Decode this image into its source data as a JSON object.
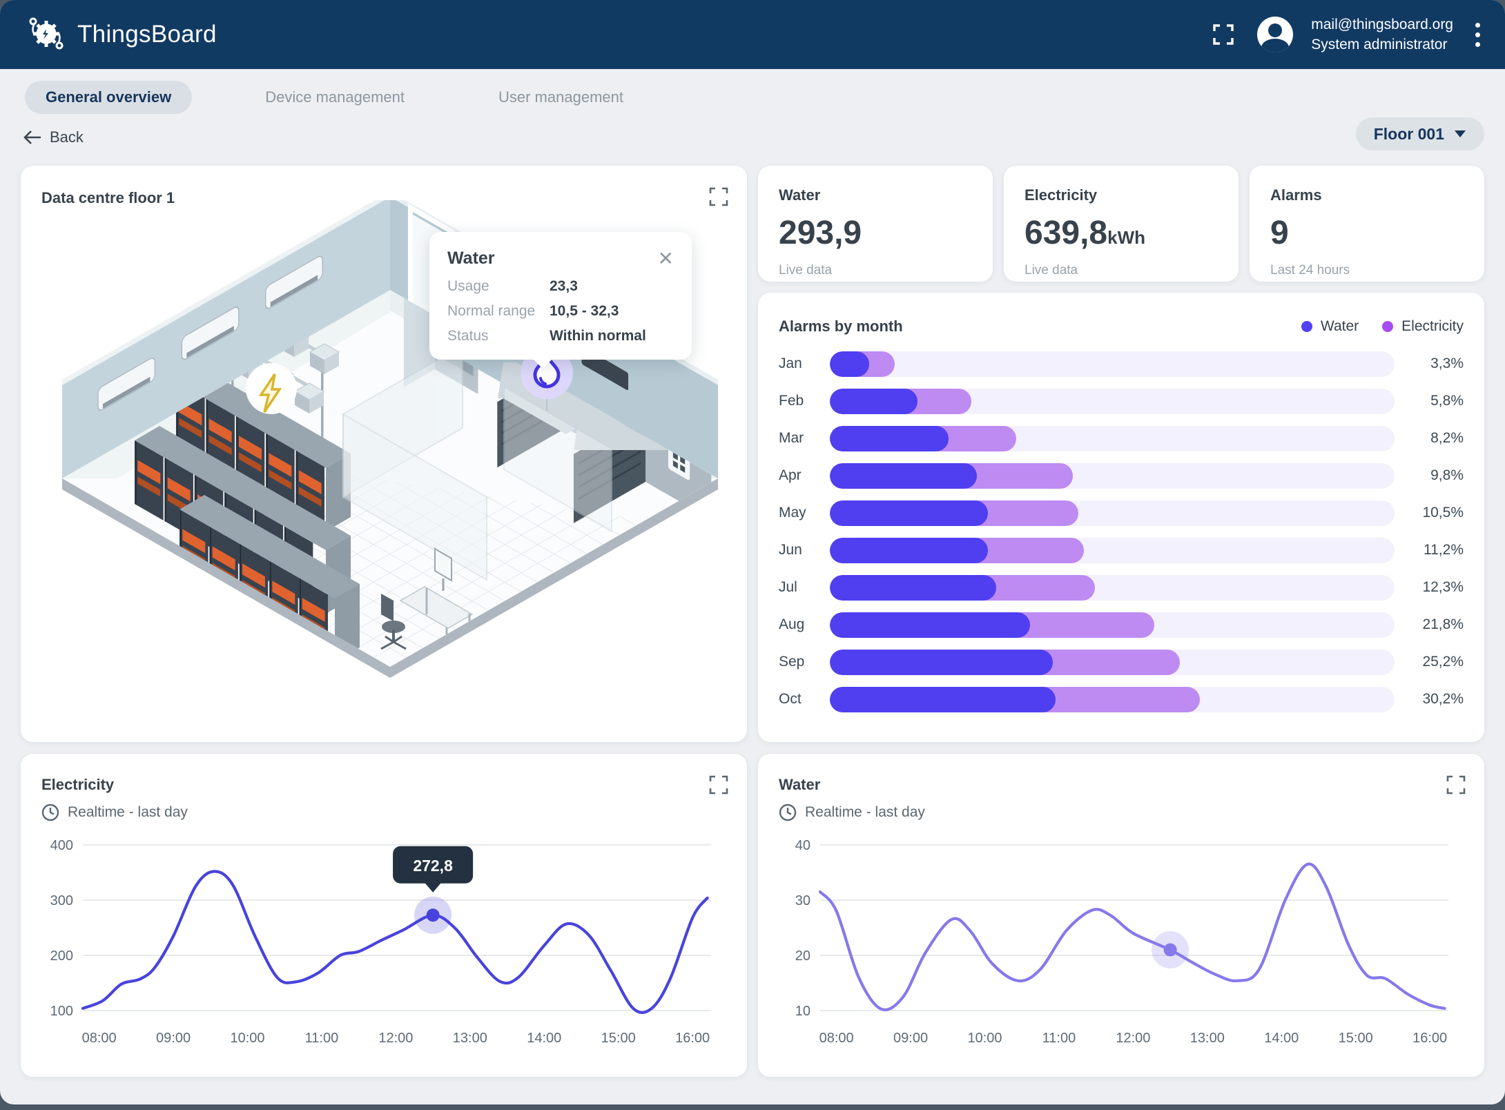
{
  "app": {
    "brand": "ThingsBoard",
    "user": {
      "email": "mail@thingsboard.org",
      "role": "System administrator"
    }
  },
  "tabs": [
    {
      "label": "General overview",
      "active": true
    },
    {
      "label": "Device management",
      "active": false
    },
    {
      "label": "User management",
      "active": false
    }
  ],
  "toolbar": {
    "back_label": "Back",
    "floor_selector_label": "Floor 001"
  },
  "floor_card": {
    "title": "Data centre floor 1",
    "marker_tooltip": {
      "title": "Water",
      "rows": [
        {
          "label": "Usage",
          "value": "23,3"
        },
        {
          "label": "Normal range",
          "value": "10,5 - 32,3"
        },
        {
          "label": "Status",
          "value": "Within normal"
        }
      ]
    },
    "badges": [
      {
        "name": "electricity"
      },
      {
        "name": "water"
      }
    ]
  },
  "stat_cards": [
    {
      "title": "Water",
      "value": "293,9",
      "unit": "",
      "caption": "Live data"
    },
    {
      "title": "Electricity",
      "value": "639,8",
      "unit": "kWh",
      "caption": "Live data"
    },
    {
      "title": "Alarms",
      "value": "9",
      "unit": "",
      "caption": "Last 24 hours"
    }
  ],
  "colors": {
    "navbar": "#113a63",
    "water_accent": "#4f3ff0",
    "electricity_accent": "#bd8bf2",
    "legend_water_dot": "#5241f2",
    "legend_electricity_dot": "#a64cf5",
    "bar_track": "#f3f1fd",
    "electricity_line": "#4843dc",
    "water_line": "#8679ea",
    "tooltip_dark": "#233140"
  },
  "chart_data": [
    {
      "id": "alarms-by-month",
      "type": "bar",
      "orientation": "horizontal",
      "title": "Alarms by month",
      "legend": [
        {
          "name": "Water",
          "color": "#5241f2"
        },
        {
          "name": "Electricity",
          "color": "#a64cf5"
        }
      ],
      "legend_position": "top-right",
      "categories": [
        "Jan",
        "Feb",
        "Mar",
        "Apr",
        "May",
        "Jun",
        "Jul",
        "Aug",
        "Sep",
        "Oct"
      ],
      "series": [
        {
          "name": "Water",
          "color": "#4f3ff0",
          "track_width_pct": [
            7,
            15.5,
            21,
            26,
            28,
            28,
            29.5,
            35.5,
            39.5,
            40
          ]
        },
        {
          "name": "Electricity",
          "color": "#bd8bf2",
          "track_width_pct": [
            4.5,
            9.5,
            12,
            17,
            16,
            17,
            17.5,
            22,
            22.5,
            25.5
          ]
        }
      ],
      "value_labels": [
        "3,3%",
        "5,8%",
        "8,2%",
        "9,8%",
        "10,5%",
        "11,2%",
        "12,3%",
        "21,8%",
        "25,2%",
        "30,2%"
      ],
      "track_color": "#f3f1fd"
    },
    {
      "id": "electricity-realtime",
      "type": "line",
      "title": "Electricity",
      "subtitle": "Realtime - last day",
      "color": "#4843dc",
      "ylim": [
        100,
        400
      ],
      "yticks": [
        100,
        200,
        300,
        400
      ],
      "xlim": [
        7.78,
        16.25
      ],
      "xticks": [
        {
          "h": 8,
          "label": "08:00"
        },
        {
          "h": 9,
          "label": "09:00"
        },
        {
          "h": 10,
          "label": "10:00"
        },
        {
          "h": 11,
          "label": "11:00"
        },
        {
          "h": 12,
          "label": "12:00"
        },
        {
          "h": 13,
          "label": "13:00"
        },
        {
          "h": 14,
          "label": "14:00"
        },
        {
          "h": 15,
          "label": "15:00"
        },
        {
          "h": 16,
          "label": "16:00"
        }
      ],
      "points": [
        [
          7.78,
          104
        ],
        [
          8.05,
          118
        ],
        [
          8.3,
          148
        ],
        [
          8.55,
          157
        ],
        [
          8.75,
          178
        ],
        [
          9.0,
          235
        ],
        [
          9.3,
          325
        ],
        [
          9.55,
          352
        ],
        [
          9.8,
          328
        ],
        [
          10.1,
          235
        ],
        [
          10.4,
          160
        ],
        [
          10.65,
          152
        ],
        [
          10.95,
          168
        ],
        [
          11.25,
          200
        ],
        [
          11.5,
          207
        ],
        [
          11.8,
          227
        ],
        [
          12.1,
          246
        ],
        [
          12.5,
          272.8
        ],
        [
          12.8,
          249
        ],
        [
          13.1,
          196
        ],
        [
          13.4,
          153
        ],
        [
          13.65,
          160
        ],
        [
          14.0,
          218
        ],
        [
          14.3,
          257
        ],
        [
          14.6,
          237
        ],
        [
          14.9,
          172
        ],
        [
          15.2,
          104
        ],
        [
          15.45,
          104
        ],
        [
          15.7,
          158
        ],
        [
          16.0,
          268
        ],
        [
          16.2,
          304
        ]
      ],
      "marker": {
        "x": 12.5,
        "y": 272.8,
        "tooltip": "272,8"
      }
    },
    {
      "id": "water-realtime",
      "type": "line",
      "title": "Water",
      "subtitle": "Realtime - last day",
      "color": "#8679ea",
      "ylim": [
        10,
        40
      ],
      "yticks": [
        10,
        20,
        30,
        40
      ],
      "xlim": [
        7.78,
        16.25
      ],
      "xticks": [
        {
          "h": 8,
          "label": "08:00"
        },
        {
          "h": 9,
          "label": "09:00"
        },
        {
          "h": 10,
          "label": "10:00"
        },
        {
          "h": 11,
          "label": "11:00"
        },
        {
          "h": 12,
          "label": "12:00"
        },
        {
          "h": 13,
          "label": "13:00"
        },
        {
          "h": 14,
          "label": "14:00"
        },
        {
          "h": 15,
          "label": "15:00"
        },
        {
          "h": 16,
          "label": "16:00"
        }
      ],
      "points": [
        [
          7.78,
          31.5
        ],
        [
          8.0,
          28
        ],
        [
          8.3,
          16
        ],
        [
          8.6,
          10.3
        ],
        [
          8.9,
          12.5
        ],
        [
          9.2,
          20.5
        ],
        [
          9.55,
          26.5
        ],
        [
          9.8,
          24.5
        ],
        [
          10.1,
          18.5
        ],
        [
          10.45,
          15.4
        ],
        [
          10.75,
          17.5
        ],
        [
          11.1,
          24.5
        ],
        [
          11.45,
          28.2
        ],
        [
          11.7,
          27.2
        ],
        [
          12.0,
          24
        ],
        [
          12.5,
          21
        ],
        [
          12.8,
          18.7
        ],
        [
          13.1,
          16.6
        ],
        [
          13.4,
          15.4
        ],
        [
          13.7,
          17.5
        ],
        [
          14.05,
          30
        ],
        [
          14.35,
          36.5
        ],
        [
          14.6,
          32.5
        ],
        [
          14.9,
          22
        ],
        [
          15.15,
          16.4
        ],
        [
          15.4,
          15.8
        ],
        [
          15.7,
          13
        ],
        [
          16.0,
          11
        ],
        [
          16.2,
          10.4
        ]
      ],
      "marker": {
        "x": 12.5,
        "y": 21
      }
    }
  ]
}
